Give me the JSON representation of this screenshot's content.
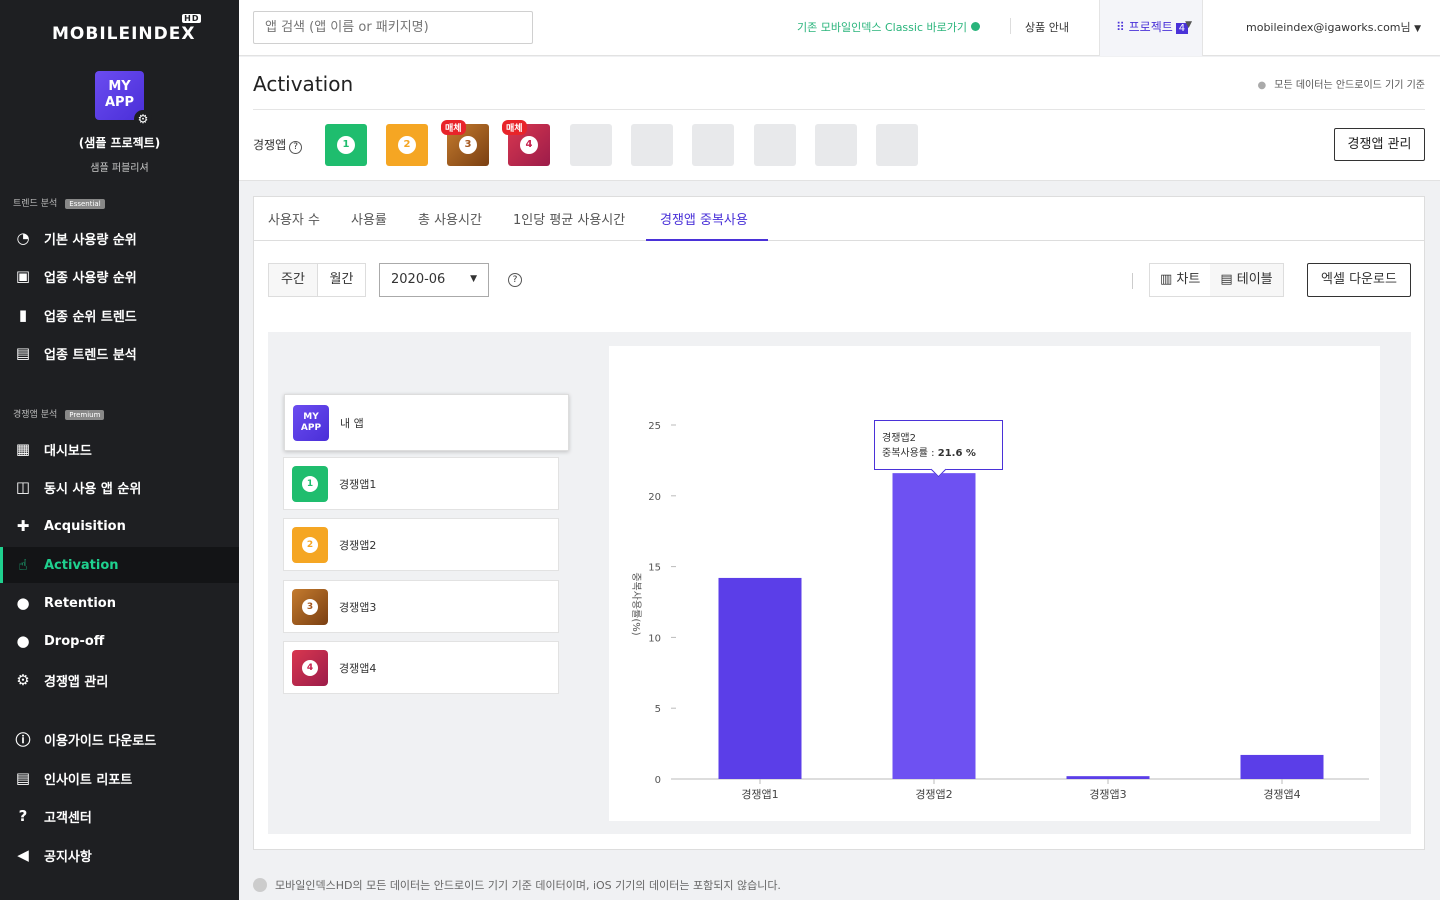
{
  "brand": {
    "logo_text": "MOBILEINDEX",
    "logo_badge": "HD"
  },
  "sidebar": {
    "project_icon_text": "MY APP",
    "project_name": "(샘플 프로젝트)",
    "project_sub": "샘플 퍼블리셔",
    "sections": [
      {
        "label": "트렌드 분석",
        "tag": "Essential"
      },
      {
        "label": "경쟁앱 분석",
        "tag": "Premium"
      }
    ],
    "items": [
      {
        "label": "기본 사용량 순위",
        "icon": "speedometer-icon"
      },
      {
        "label": "업종 사용량 순위",
        "icon": "store-icon"
      },
      {
        "label": "업종 순위 트렌드",
        "icon": "bar-chart-icon"
      },
      {
        "label": "업종 트렌드 분석",
        "icon": "trend-chart-icon"
      },
      {
        "label": "대시보드",
        "icon": "dashboard-icon"
      },
      {
        "label": "동시 사용 앱 순위",
        "icon": "line-chart-icon"
      },
      {
        "label": "Acquisition",
        "icon": "add-user-icon"
      },
      {
        "label": "Activation",
        "icon": "touch-icon"
      },
      {
        "label": "Retention",
        "icon": "user-refresh-icon"
      },
      {
        "label": "Drop-off",
        "icon": "user-minus-icon"
      },
      {
        "label": "경쟁앱 관리",
        "icon": "gear-icon"
      },
      {
        "label": "이용가이드 다운로드",
        "icon": "info-icon"
      },
      {
        "label": "인사이트 리포트",
        "icon": "report-icon"
      },
      {
        "label": "고객센터",
        "icon": "help-icon"
      },
      {
        "label": "공지사항",
        "icon": "megaphone-icon"
      }
    ]
  },
  "topbar": {
    "search_placeholder": "앱 검색 (앱 이름 or 패키지명)",
    "classic_link": "기존 모바일인덱스 Classic 바로가기",
    "product_info": "상품 안내",
    "project_label": "프로젝트",
    "project_count": "4",
    "account": "mobileindex@igaworks.com님"
  },
  "header": {
    "title": "Activation",
    "android_note": "모든 데이터는 안드로이드 기기 기준",
    "competitor_label": "경쟁앱",
    "manage_button": "경쟁앱 관리",
    "competitors": [
      {
        "num": "1",
        "color": "#1fbd6e",
        "badge": ""
      },
      {
        "num": "2",
        "color": "#f5a623",
        "badge": ""
      },
      {
        "num": "3",
        "color": "#a6581e",
        "badge": "매체"
      },
      {
        "num": "4",
        "color": "#c7234f",
        "badge": "매체"
      }
    ]
  },
  "tabs": [
    "사용자 수",
    "사용률",
    "총 사용시간",
    "1인당 평균 사용시간",
    "경쟁앱 중복사용"
  ],
  "controls": {
    "period_weekly": "주간",
    "period_monthly": "월간",
    "month": "2020-06",
    "view_chart": "차트",
    "view_table": "테이블",
    "excel": "엑셀 다운로드"
  },
  "app_list": [
    {
      "label": "내 앱",
      "num": "",
      "color": "#5b3ee8"
    },
    {
      "label": "경쟁앱1",
      "num": "1",
      "color": "#1fbd6e"
    },
    {
      "label": "경쟁앱2",
      "num": "2",
      "color": "#f5a623"
    },
    {
      "label": "경쟁앱3",
      "num": "3",
      "color": "#a6581e"
    },
    {
      "label": "경쟁앱4",
      "num": "4",
      "color": "#c7234f"
    }
  ],
  "tooltip": {
    "app": "경쟁앱2",
    "metric": "중복사용률 : ",
    "value": "21.6 %"
  },
  "chart_data": {
    "type": "bar",
    "categories": [
      "경쟁앱1",
      "경쟁앱2",
      "경쟁앱3",
      "경쟁앱4"
    ],
    "values": [
      14.2,
      21.6,
      0.2,
      1.7
    ],
    "ylabel": "중복사용률(%)",
    "ylim": [
      0,
      25
    ],
    "yticks": [
      0,
      5,
      10,
      15,
      20,
      25
    ],
    "colors": [
      "#5b3ee8",
      "#6e51f2",
      "#5b3ee8",
      "#5b3ee8"
    ],
    "grid": false
  },
  "footer_note": "모바일인덱스HD의 모든 데이터는 안드로이드 기기 기준 데이터이며, iOS 기기의 데이터는 포함되지 않습니다."
}
